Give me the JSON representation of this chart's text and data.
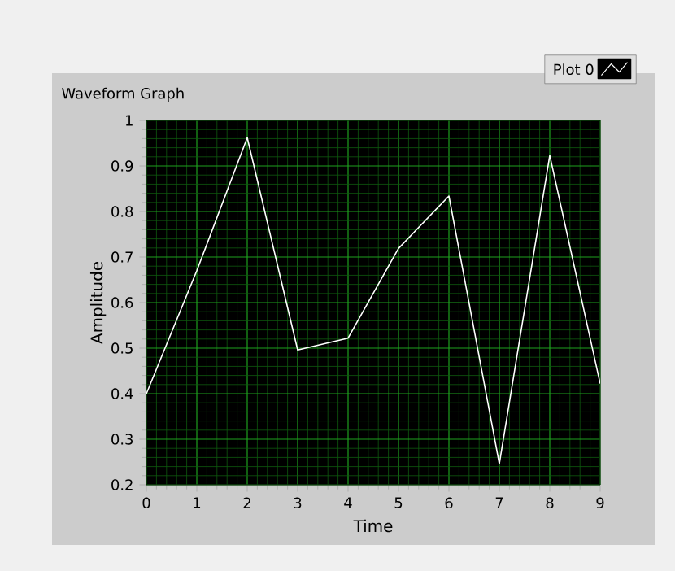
{
  "chart_data": {
    "type": "line",
    "title": "Waveform Graph",
    "xlabel": "Time",
    "ylabel": "Amplitude",
    "x": [
      0,
      1,
      2,
      3,
      4,
      5,
      6,
      7,
      8,
      9
    ],
    "series": [
      {
        "name": "Plot 0",
        "color": "#ffffff",
        "values": [
          0.4,
          0.67,
          0.962,
          0.496,
          0.522,
          0.719,
          0.834,
          0.246,
          0.923,
          0.422
        ]
      }
    ],
    "xlim": [
      0,
      9
    ],
    "ylim": [
      0.2,
      1
    ],
    "xticks": [
      0,
      {
        "value": 0.2,
        "label": null
      },
      {
        "value": 0.4,
        "label": null
      },
      {
        "value": 0.6,
        "label": null
      },
      {
        "value": 0.8,
        "label": null
      },
      1,
      {
        "value": 1.2,
        "label": null
      },
      {
        "value": 1.4,
        "label": null
      },
      {
        "value": 1.6,
        "label": null
      },
      {
        "value": 1.8,
        "label": null
      },
      2,
      {
        "value": 2.2,
        "label": null
      },
      {
        "value": 2.4,
        "label": null
      },
      {
        "value": 2.6,
        "label": null
      },
      {
        "value": 2.8,
        "label": null
      },
      3,
      {
        "value": 3.2,
        "label": null
      },
      {
        "value": 3.4,
        "label": null
      },
      {
        "value": 3.6,
        "label": null
      },
      {
        "value": 3.8,
        "label": null
      },
      4,
      {
        "value": 4.2,
        "label": null
      },
      {
        "value": 4.4,
        "label": null
      },
      {
        "value": 4.6,
        "label": null
      },
      {
        "value": 4.8,
        "label": null
      },
      5,
      {
        "value": 5.2,
        "label": null
      },
      {
        "value": 5.4,
        "label": null
      },
      {
        "value": 5.6,
        "label": null
      },
      {
        "value": 5.8,
        "label": null
      },
      6,
      {
        "value": 6.2,
        "label": null
      },
      {
        "value": 6.4,
        "label": null
      },
      {
        "value": 6.6,
        "label": null
      },
      {
        "value": 6.8,
        "label": null
      },
      7,
      {
        "value": 7.2,
        "label": null
      },
      {
        "value": 7.4,
        "label": null
      },
      {
        "value": 7.6,
        "label": null
      },
      {
        "value": 7.8,
        "label": null
      },
      8,
      {
        "value": 8.2,
        "label": null
      },
      {
        "value": 8.4,
        "label": null
      },
      {
        "value": 8.6,
        "label": null
      },
      {
        "value": 8.8,
        "label": null
      },
      9
    ],
    "yticks": [
      0.2,
      {
        "value": 0.22,
        "label": null
      },
      {
        "value": 0.24,
        "label": null
      },
      {
        "value": 0.26,
        "label": null
      },
      {
        "value": 0.28,
        "label": null
      },
      0.3,
      {
        "value": 0.32,
        "label": null
      },
      {
        "value": 0.34,
        "label": null
      },
      {
        "value": 0.36,
        "label": null
      },
      {
        "value": 0.38,
        "label": null
      },
      0.4,
      {
        "value": 0.42,
        "label": null
      },
      {
        "value": 0.44,
        "label": null
      },
      {
        "value": 0.46,
        "label": null
      },
      {
        "value": 0.48,
        "label": null
      },
      0.5,
      {
        "value": 0.52,
        "label": null
      },
      {
        "value": 0.54,
        "label": null
      },
      {
        "value": 0.56,
        "label": null
      },
      {
        "value": 0.58,
        "label": null
      },
      0.6,
      {
        "value": 0.62,
        "label": null
      },
      {
        "value": 0.64,
        "label": null
      },
      {
        "value": 0.66,
        "label": null
      },
      {
        "value": 0.68,
        "label": null
      },
      0.7,
      {
        "value": 0.72,
        "label": null
      },
      {
        "value": 0.74,
        "label": null
      },
      {
        "value": 0.76,
        "label": null
      },
      {
        "value": 0.78,
        "label": null
      },
      0.8,
      {
        "value": 0.82,
        "label": null
      },
      {
        "value": 0.84,
        "label": null
      },
      {
        "value": 0.86,
        "label": null
      },
      {
        "value": 0.88,
        "label": null
      },
      0.9,
      {
        "value": 0.92,
        "label": null
      },
      {
        "value": 0.94,
        "label": null
      },
      {
        "value": 0.96,
        "label": null
      },
      {
        "value": 0.98,
        "label": null
      },
      1
    ],
    "grid": true,
    "legend": "top right",
    "marker": "none",
    "line_style": "solid"
  }
}
